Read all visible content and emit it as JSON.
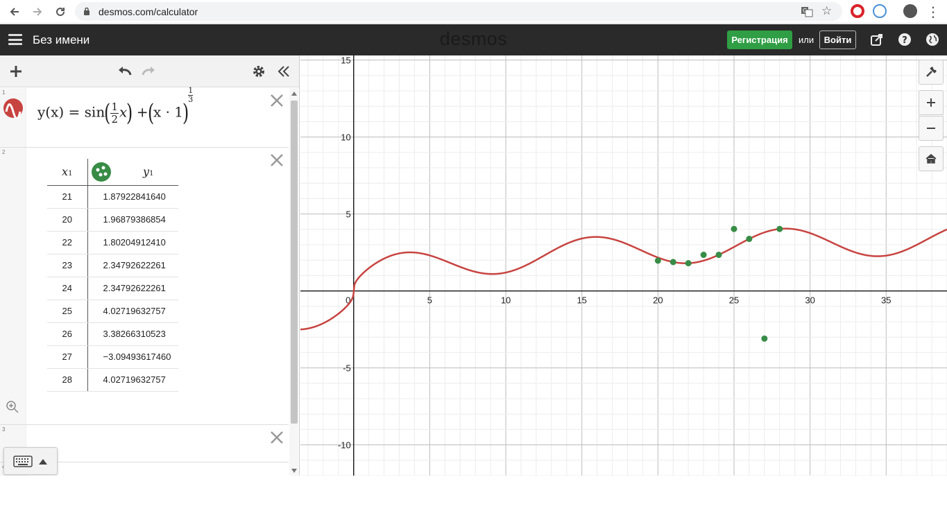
{
  "browser": {
    "url": "desmos.com/calculator"
  },
  "header": {
    "title": "Без имени",
    "logo": "desmos",
    "register_label": "Регистрация",
    "or_label": "или",
    "login_label": "Войти"
  },
  "expressions": {
    "e1": {
      "number": "1",
      "formula": {
        "lhs": "y(x) = sin",
        "frac_num": "1",
        "frac_den": "2",
        "x": "x",
        "plus": "+",
        "inner": "x · 1",
        "exp_num": "1",
        "exp_den": "3"
      }
    },
    "e2": {
      "number": "2",
      "col1_header": "x",
      "col1_sub": "1",
      "col2_header": "y",
      "col2_sub": "1",
      "rows": [
        {
          "x": "21",
          "y": "1.87922841640"
        },
        {
          "x": "20",
          "y": "1.96879386854"
        },
        {
          "x": "22",
          "y": "1.80204912410"
        },
        {
          "x": "23",
          "y": "2.34792622261"
        },
        {
          "x": "24",
          "y": "2.34792622261"
        },
        {
          "x": "25",
          "y": "4.02719632757"
        },
        {
          "x": "26",
          "y": "3.38266310523"
        },
        {
          "x": "27",
          "y": "−3.09493617460"
        },
        {
          "x": "28",
          "y": "4.02719632757"
        }
      ]
    },
    "e3": {
      "number": "3"
    },
    "e4": {
      "number": "4"
    }
  },
  "colors": {
    "curve": "#c74440",
    "points": "#388c46",
    "accent_green": "#2f9e44",
    "header_bg": "#2a2a2a"
  },
  "chart_data": {
    "type": "line",
    "xlim": [
      -3.5,
      39
    ],
    "ylim": [
      -12,
      15.3
    ],
    "grid": true,
    "x_ticks": [
      "0",
      "5",
      "10",
      "15",
      "20",
      "25",
      "30",
      "35"
    ],
    "y_ticks": [
      "15",
      "10",
      "5",
      "-5",
      "-10"
    ],
    "series": [
      {
        "kind": "curve",
        "expression": "y = sin(x/2) + cbrt(x)"
      },
      {
        "kind": "points",
        "x": [
          21,
          20,
          22,
          23,
          24,
          25,
          26,
          27,
          28
        ],
        "y": [
          1.8792,
          1.9688,
          1.802,
          2.3479,
          2.3479,
          4.0272,
          3.3827,
          -3.0949,
          4.0272
        ]
      }
    ]
  }
}
